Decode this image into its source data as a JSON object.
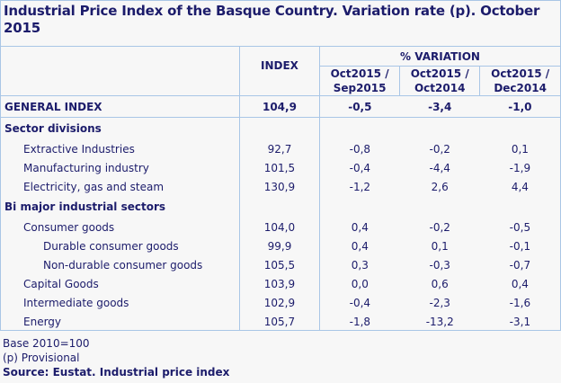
{
  "title": "Industrial Price Index of the Basque Country. Variation rate (p). October 2015",
  "header": {
    "index": "INDEX",
    "variation_group": "% VARIATION",
    "variation_cols": [
      "Oct2015 / Sep2015",
      "Oct2015 / Oct2014",
      "Oct2015 / Dec2014"
    ]
  },
  "general": {
    "label": "GENERAL INDEX",
    "index": "104,9",
    "v1": "-0,5",
    "v2": "-3,4",
    "v3": "-1,0"
  },
  "sections": [
    {
      "label": "Sector divisions",
      "rows": [
        {
          "label": "Extractive Industries",
          "index": "92,7",
          "v1": "-0,8",
          "v2": "-0,2",
          "v3": "0,1"
        },
        {
          "label": "Manufacturing industry",
          "index": "101,5",
          "v1": "-0,4",
          "v2": "-4,4",
          "v3": "-1,9"
        },
        {
          "label": "Electricity, gas and steam",
          "index": "130,9",
          "v1": "-1,2",
          "v2": "2,6",
          "v3": "4,4"
        }
      ]
    },
    {
      "label": "Bi major industrial sectors",
      "rows": [
        {
          "label": "Consumer goods",
          "index": "104,0",
          "v1": "0,4",
          "v2": "-0,2",
          "v3": "-0,5"
        },
        {
          "label": "Durable consumer goods",
          "index": "99,9",
          "v1": "0,4",
          "v2": "0,1",
          "v3": "-0,1"
        },
        {
          "label": "Non-durable consumer goods",
          "index": "105,5",
          "v1": "0,3",
          "v2": "-0,3",
          "v3": "-0,7"
        },
        {
          "label": "Capital Goods",
          "index": "103,9",
          "v1": "0,0",
          "v2": "0,6",
          "v3": "0,4"
        },
        {
          "label": "Intermediate goods",
          "index": "102,9",
          "v1": "-0,4",
          "v2": "-2,3",
          "v3": "-1,6"
        },
        {
          "label": "Energy",
          "index": "105,7",
          "v1": "-1,8",
          "v2": "-13,2",
          "v3": "-3,1"
        }
      ]
    }
  ],
  "footer": {
    "base": "Base 2010=100",
    "provisional": "(p) Provisional",
    "source": "Source: Eustat. Industrial price index"
  }
}
